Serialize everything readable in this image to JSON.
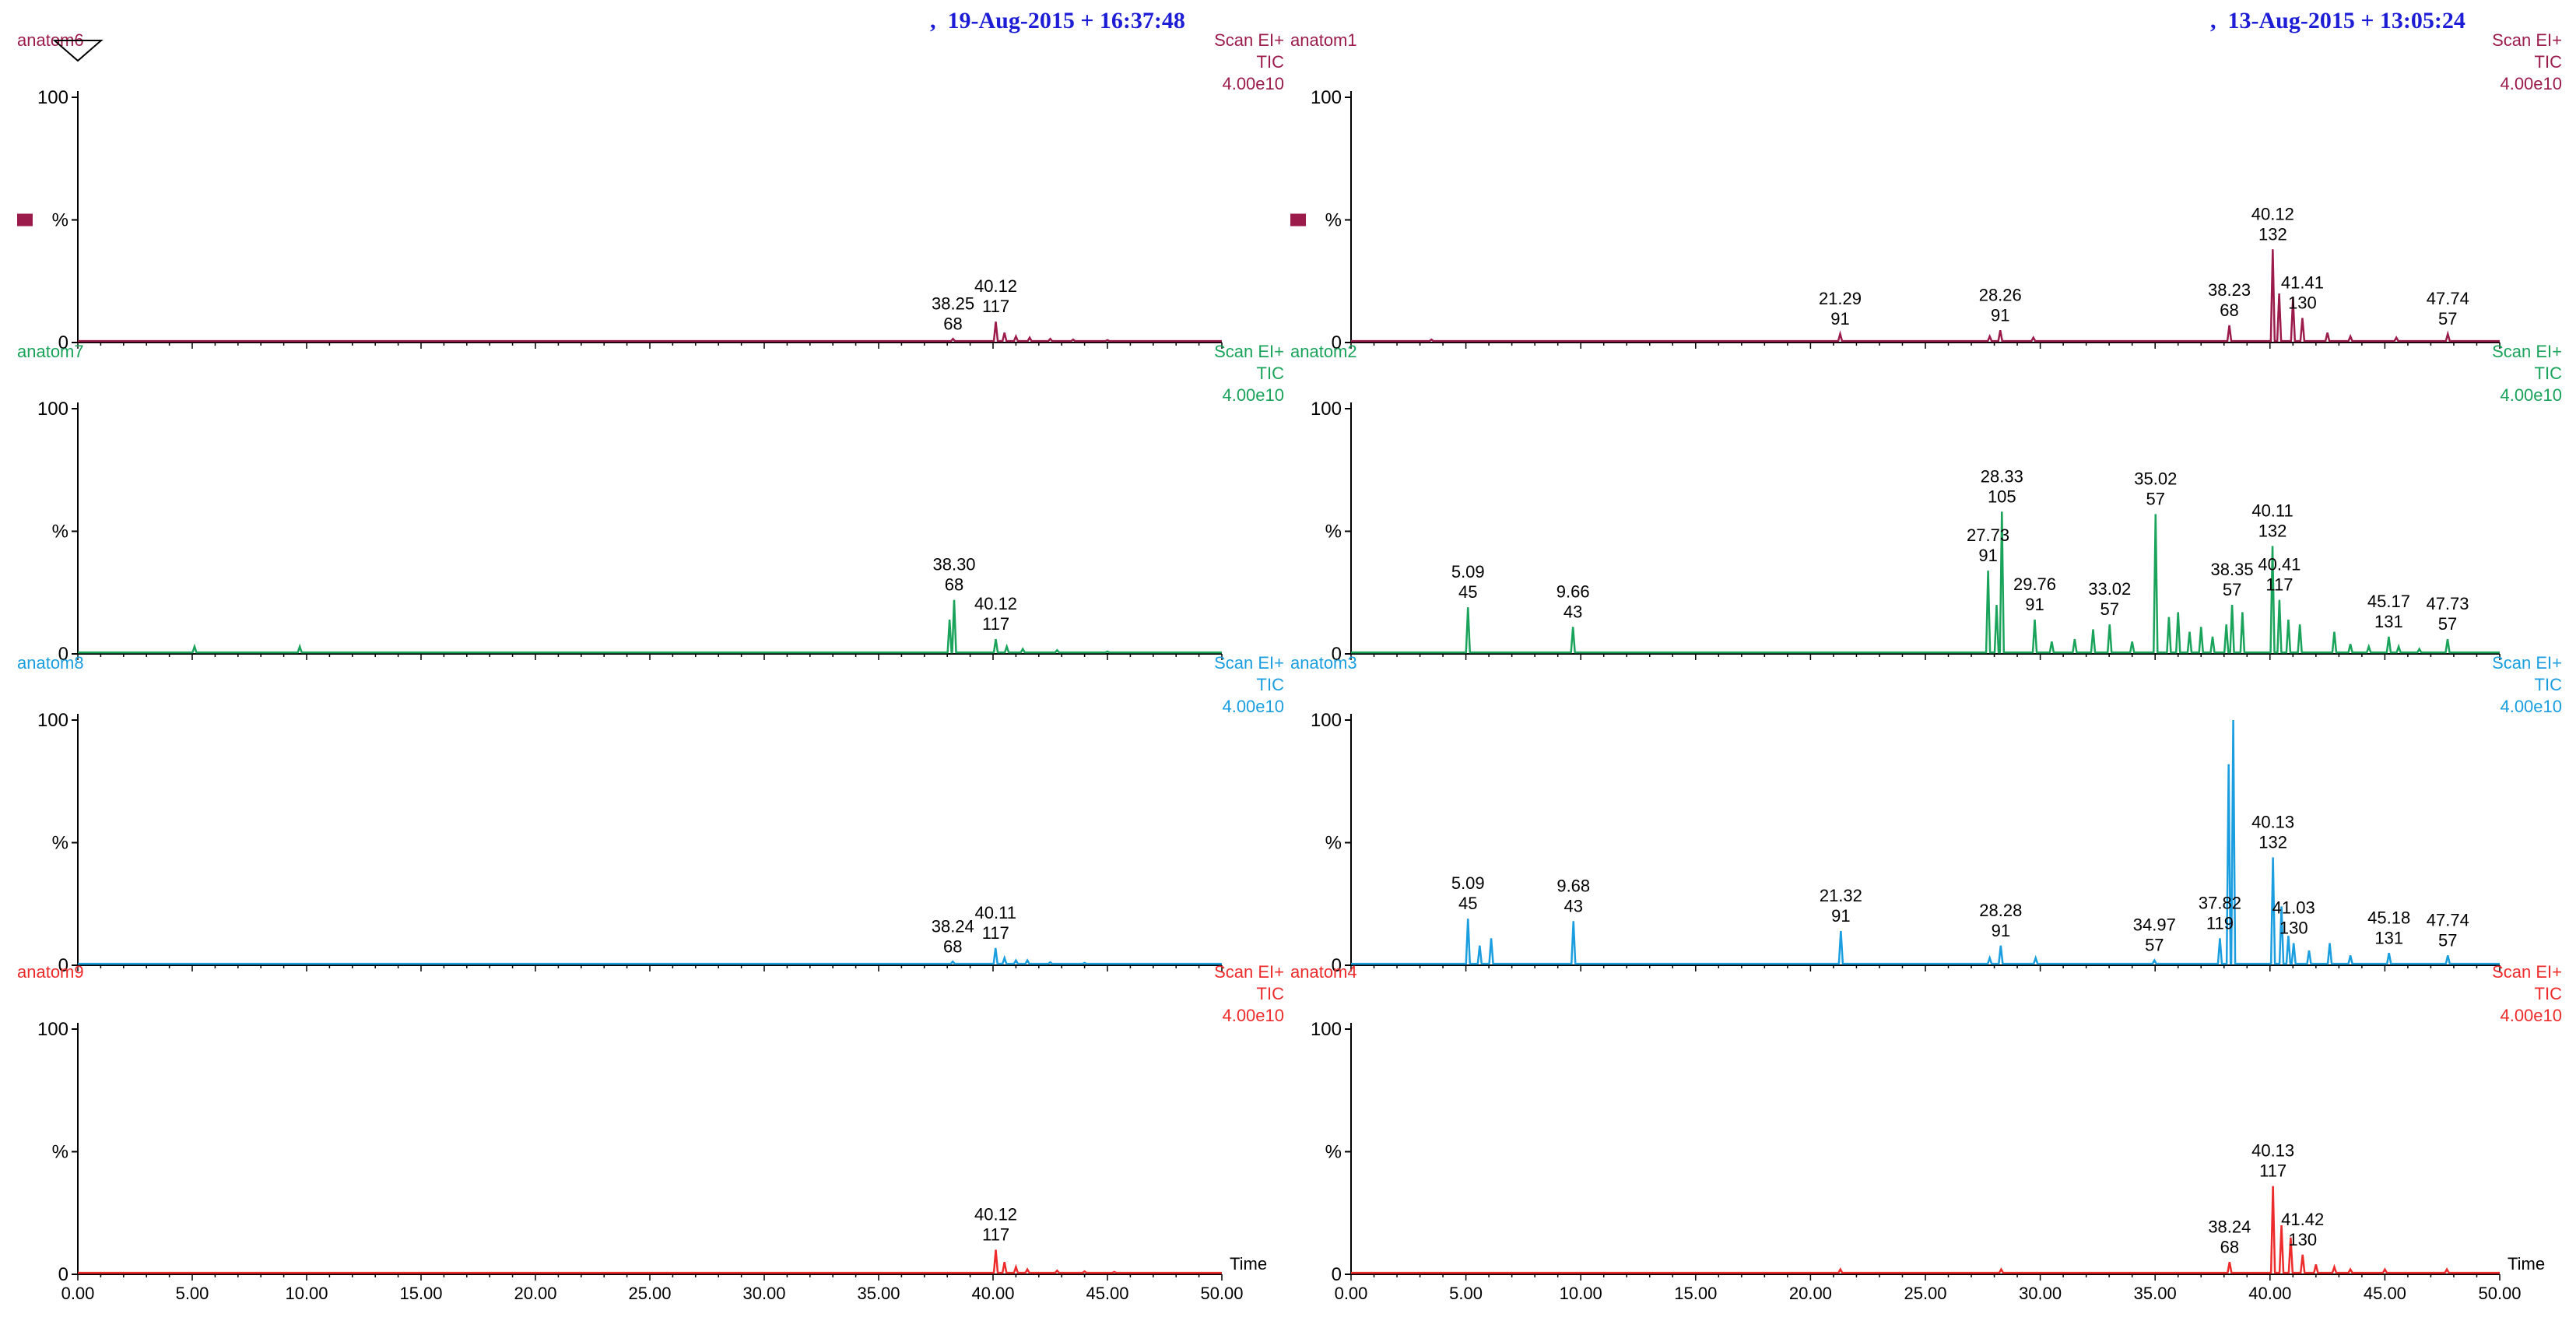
{
  "header": {
    "left_datetime": ",  19-Aug-2015 + 16:37:48",
    "right_datetime": ",  13-Aug-2015 + 13:05:24"
  },
  "time_label": "Time",
  "x_ticks": [
    "0.00",
    "5.00",
    "10.00",
    "15.00",
    "20.00",
    "25.00",
    "30.00",
    "35.00",
    "40.00",
    "45.00",
    "50.00"
  ],
  "chart_data": [
    {
      "type": "line",
      "name": "anatom6",
      "color": "#9b1b4b",
      "scan": "Scan EI+",
      "tic": "TIC",
      "scale": "4.00e10",
      "xlim": [
        0,
        50
      ],
      "ylim": [
        0,
        100
      ],
      "y_ticks": [
        "100",
        "%",
        "0"
      ],
      "legend_swatch": true,
      "peaks": [
        [
          38.25,
          1.5
        ],
        [
          40.12,
          8.5
        ],
        [
          40.5,
          4
        ],
        [
          41.0,
          2.5
        ],
        [
          41.6,
          2
        ],
        [
          42.5,
          1.5
        ],
        [
          43.5,
          1.2
        ],
        [
          45.0,
          1.0
        ]
      ],
      "annotations": [
        {
          "x": 38.25,
          "y": 1.5,
          "lines": [
            "38.25",
            "68"
          ]
        },
        {
          "x": 40.12,
          "y": 8.5,
          "lines": [
            "40.12",
            "117"
          ]
        }
      ]
    },
    {
      "type": "line",
      "name": "anatom1",
      "color": "#9b1b4b",
      "scan": "Scan EI+",
      "tic": "TIC",
      "scale": "4.00e10",
      "xlim": [
        0,
        50
      ],
      "ylim": [
        0,
        100
      ],
      "y_ticks": [
        "100",
        "%",
        "0"
      ],
      "legend_swatch": true,
      "peaks": [
        [
          3.5,
          1.2
        ],
        [
          21.29,
          3.5
        ],
        [
          27.8,
          2.5
        ],
        [
          28.26,
          5
        ],
        [
          29.7,
          2
        ],
        [
          38.23,
          7
        ],
        [
          40.12,
          38
        ],
        [
          40.4,
          20
        ],
        [
          41.0,
          18
        ],
        [
          41.41,
          10
        ],
        [
          42.5,
          4
        ],
        [
          43.5,
          2.5
        ],
        [
          45.5,
          2
        ],
        [
          47.74,
          3.5
        ]
      ],
      "annotations": [
        {
          "x": 21.29,
          "y": 3.5,
          "lines": [
            "21.29",
            "91"
          ]
        },
        {
          "x": 28.26,
          "y": 5,
          "lines": [
            "28.26",
            "91"
          ]
        },
        {
          "x": 38.23,
          "y": 7,
          "lines": [
            "38.23",
            "68"
          ]
        },
        {
          "x": 40.12,
          "y": 38,
          "lines": [
            "40.12",
            "132"
          ]
        },
        {
          "x": 41.41,
          "y": 10,
          "lines": [
            "41.41",
            "130"
          ]
        },
        {
          "x": 47.74,
          "y": 3.5,
          "lines": [
            "47.74",
            "57"
          ]
        }
      ]
    },
    {
      "type": "line",
      "name": "anatom7",
      "color": "#1aa35a",
      "scan": "Scan EI+",
      "tic": "TIC",
      "scale": "4.00e10",
      "xlim": [
        0,
        50
      ],
      "ylim": [
        0,
        100
      ],
      "y_ticks": [
        "100",
        "%",
        "0"
      ],
      "legend_swatch": false,
      "peaks": [
        [
          5.1,
          3
        ],
        [
          9.7,
          3
        ],
        [
          38.3,
          22
        ],
        [
          38.1,
          14
        ],
        [
          40.12,
          6
        ],
        [
          40.6,
          3
        ],
        [
          41.3,
          2
        ],
        [
          42.8,
          1.5
        ],
        [
          45.0,
          1
        ]
      ],
      "annotations": [
        {
          "x": 38.3,
          "y": 22,
          "lines": [
            "38.30",
            "68"
          ]
        },
        {
          "x": 40.12,
          "y": 6,
          "lines": [
            "40.12",
            "117"
          ]
        }
      ]
    },
    {
      "type": "line",
      "name": "anatom2",
      "color": "#1aa35a",
      "scan": "Scan EI+",
      "tic": "TIC",
      "scale": "4.00e10",
      "xlim": [
        0,
        50
      ],
      "ylim": [
        0,
        100
      ],
      "y_ticks": [
        "100",
        "%",
        "0"
      ],
      "legend_swatch": false,
      "peaks": [
        [
          5.09,
          19
        ],
        [
          9.66,
          11
        ],
        [
          27.73,
          34
        ],
        [
          28.1,
          20
        ],
        [
          28.33,
          58
        ],
        [
          29.76,
          14
        ],
        [
          30.5,
          5
        ],
        [
          31.5,
          6
        ],
        [
          32.3,
          10
        ],
        [
          33.02,
          12
        ],
        [
          34.0,
          5
        ],
        [
          35.02,
          57
        ],
        [
          35.6,
          15
        ],
        [
          36.0,
          17
        ],
        [
          36.5,
          9
        ],
        [
          37.0,
          11
        ],
        [
          37.5,
          7
        ],
        [
          38.1,
          12
        ],
        [
          38.35,
          20
        ],
        [
          38.8,
          17
        ],
        [
          40.11,
          44
        ],
        [
          40.41,
          22
        ],
        [
          40.8,
          14
        ],
        [
          41.3,
          12
        ],
        [
          42.8,
          9
        ],
        [
          43.5,
          4
        ],
        [
          44.3,
          3
        ],
        [
          45.17,
          7
        ],
        [
          45.6,
          3
        ],
        [
          46.5,
          2
        ],
        [
          47.73,
          6
        ]
      ],
      "annotations": [
        {
          "x": 5.09,
          "y": 19,
          "lines": [
            "5.09",
            "45"
          ]
        },
        {
          "x": 9.66,
          "y": 11,
          "lines": [
            "9.66",
            "43"
          ]
        },
        {
          "x": 27.73,
          "y": 34,
          "lines": [
            "27.73",
            "91"
          ]
        },
        {
          "x": 28.33,
          "y": 58,
          "lines": [
            "28.33",
            "105"
          ]
        },
        {
          "x": 29.76,
          "y": 14,
          "lines": [
            "29.76",
            "91"
          ]
        },
        {
          "x": 33.02,
          "y": 12,
          "lines": [
            "33.02",
            "57"
          ]
        },
        {
          "x": 35.02,
          "y": 57,
          "lines": [
            "35.02",
            "57"
          ]
        },
        {
          "x": 38.35,
          "y": 20,
          "lines": [
            "38.35",
            "57"
          ]
        },
        {
          "x": 40.11,
          "y": 44,
          "lines": [
            "40.11",
            "132"
          ]
        },
        {
          "x": 40.41,
          "y": 22,
          "lines": [
            "40.41",
            "117"
          ]
        },
        {
          "x": 45.17,
          "y": 7,
          "lines": [
            "45.17",
            "131"
          ]
        },
        {
          "x": 47.73,
          "y": 6,
          "lines": [
            "47.73",
            "57"
          ]
        }
      ]
    },
    {
      "type": "line",
      "name": "anatom8",
      "color": "#1a9ee0",
      "scan": "Scan EI+",
      "tic": "TIC",
      "scale": "4.00e10",
      "xlim": [
        0,
        50
      ],
      "ylim": [
        0,
        100
      ],
      "y_ticks": [
        "100",
        "%",
        "0"
      ],
      "legend_swatch": false,
      "peaks": [
        [
          38.24,
          1.5
        ],
        [
          40.11,
          7
        ],
        [
          40.5,
          3
        ],
        [
          41.0,
          2
        ],
        [
          41.5,
          2
        ],
        [
          42.5,
          1.2
        ],
        [
          44.0,
          1
        ]
      ],
      "annotations": [
        {
          "x": 38.24,
          "y": 1.5,
          "lines": [
            "38.24",
            "68"
          ]
        },
        {
          "x": 40.11,
          "y": 7,
          "lines": [
            "40.11",
            "117"
          ]
        }
      ]
    },
    {
      "type": "line",
      "name": "anatom3",
      "color": "#1a9ee0",
      "scan": "Scan EI+",
      "tic": "TIC",
      "scale": "4.00e10",
      "xlim": [
        0,
        50
      ],
      "ylim": [
        0,
        100
      ],
      "y_ticks": [
        "100",
        "%",
        "0"
      ],
      "legend_swatch": false,
      "peaks": [
        [
          5.09,
          19
        ],
        [
          5.6,
          8
        ],
        [
          6.1,
          11
        ],
        [
          9.68,
          18
        ],
        [
          21.32,
          14
        ],
        [
          28.28,
          8
        ],
        [
          27.8,
          3
        ],
        [
          29.8,
          3
        ],
        [
          34.97,
          2
        ],
        [
          37.82,
          11
        ],
        [
          38.2,
          82
        ],
        [
          38.4,
          100
        ],
        [
          40.13,
          44
        ],
        [
          40.5,
          24
        ],
        [
          40.8,
          12
        ],
        [
          41.03,
          9
        ],
        [
          41.7,
          6
        ],
        [
          42.6,
          9
        ],
        [
          43.5,
          4
        ],
        [
          45.18,
          5
        ],
        [
          47.74,
          4
        ]
      ],
      "annotations": [
        {
          "x": 5.09,
          "y": 19,
          "lines": [
            "5.09",
            "45"
          ]
        },
        {
          "x": 9.68,
          "y": 18,
          "lines": [
            "9.68",
            "43"
          ]
        },
        {
          "x": 21.32,
          "y": 14,
          "lines": [
            "21.32",
            "91"
          ]
        },
        {
          "x": 28.28,
          "y": 8,
          "lines": [
            "28.28",
            "91"
          ]
        },
        {
          "x": 34.97,
          "y": 2,
          "lines": [
            "34.97",
            "57"
          ]
        },
        {
          "x": 37.82,
          "y": 11,
          "lines": [
            "37.82",
            "119"
          ]
        },
        {
          "x": 40.13,
          "y": 44,
          "lines": [
            "40.13",
            "132"
          ]
        },
        {
          "x": 41.03,
          "y": 9,
          "lines": [
            "41.03",
            "130"
          ]
        },
        {
          "x": 45.18,
          "y": 5,
          "lines": [
            "45.18",
            "131"
          ]
        },
        {
          "x": 47.74,
          "y": 4,
          "lines": [
            "47.74",
            "57"
          ]
        }
      ]
    },
    {
      "type": "line",
      "name": "anatom9",
      "color": "#ee2b2b",
      "scan": "Scan EI+",
      "tic": "TIC",
      "scale": "4.00e10",
      "xlim": [
        0,
        50
      ],
      "ylim": [
        0,
        100
      ],
      "y_ticks": [
        "100",
        "%",
        "0"
      ],
      "legend_swatch": false,
      "peaks": [
        [
          40.12,
          10
        ],
        [
          40.5,
          5
        ],
        [
          41.0,
          3
        ],
        [
          41.5,
          2
        ],
        [
          42.8,
          1.5
        ],
        [
          44.0,
          1.2
        ],
        [
          45.3,
          1
        ]
      ],
      "annotations": [
        {
          "x": 40.12,
          "y": 10,
          "lines": [
            "40.12",
            "117"
          ]
        }
      ]
    },
    {
      "type": "line",
      "name": "anatom4",
      "color": "#ee2b2b",
      "scan": "Scan EI+",
      "tic": "TIC",
      "scale": "4.00e10",
      "xlim": [
        0,
        50
      ],
      "ylim": [
        0,
        100
      ],
      "y_ticks": [
        "100",
        "%",
        "0"
      ],
      "legend_swatch": false,
      "peaks": [
        [
          21.3,
          2
        ],
        [
          28.3,
          2
        ],
        [
          38.24,
          5
        ],
        [
          40.13,
          36
        ],
        [
          40.5,
          20
        ],
        [
          40.9,
          15
        ],
        [
          41.42,
          8
        ],
        [
          42.0,
          4
        ],
        [
          42.8,
          3
        ],
        [
          43.5,
          2
        ],
        [
          45.0,
          2
        ],
        [
          47.7,
          2
        ]
      ],
      "annotations": [
        {
          "x": 38.24,
          "y": 5,
          "lines": [
            "38.24",
            "68"
          ]
        },
        {
          "x": 40.13,
          "y": 36,
          "lines": [
            "40.13",
            "117"
          ]
        },
        {
          "x": 41.42,
          "y": 8,
          "lines": [
            "41.42",
            "130"
          ]
        }
      ]
    }
  ]
}
